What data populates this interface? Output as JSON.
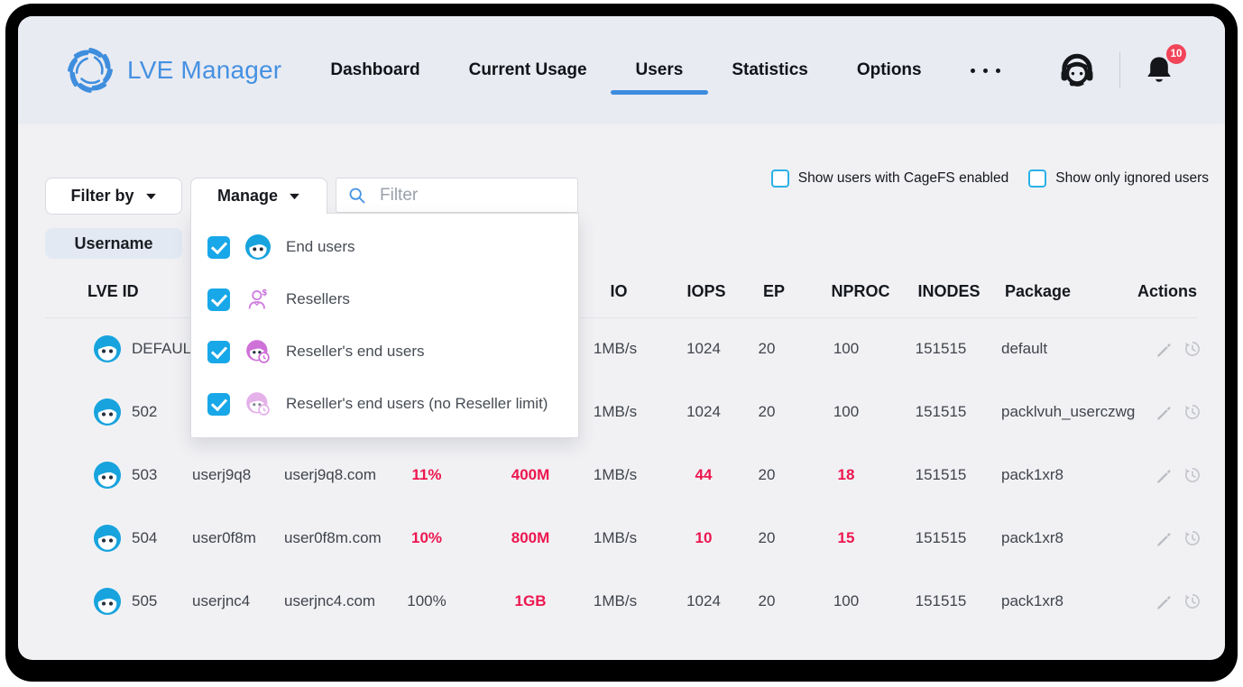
{
  "navbar": {
    "brand": "LVE Manager",
    "items": [
      {
        "label": "Dashboard",
        "active": false
      },
      {
        "label": "Current Usage",
        "active": false
      },
      {
        "label": "Users",
        "active": true
      },
      {
        "label": "Statistics",
        "active": false
      },
      {
        "label": "Options",
        "active": false
      }
    ],
    "notifications_count": "10"
  },
  "filters": {
    "filter_by_label": "Filter by",
    "manage_label": "Manage",
    "search_placeholder": "Filter",
    "search_value": "",
    "username_chip": "Username",
    "cagefs_checkbox": {
      "label": "Show users with CageFS enabled",
      "checked": false
    },
    "ignored_checkbox": {
      "label": "Show only ignored users",
      "checked": false
    }
  },
  "manage_dropdown": {
    "items": [
      {
        "label": "End users",
        "checked": true,
        "icon": "i-enduser"
      },
      {
        "label": "Resellers",
        "checked": true,
        "icon": "i-reseller"
      },
      {
        "label": "Reseller's end users",
        "checked": true,
        "icon": "i-rend"
      },
      {
        "label": "Reseller's end users (no Reseller limit)",
        "checked": true,
        "icon": "i-rendnl"
      }
    ]
  },
  "table": {
    "columns": [
      "LVE ID",
      "IO",
      "IOPS",
      "EP",
      "NPROC",
      "INODES",
      "Package",
      "Actions"
    ],
    "rows": [
      {
        "lve_id": "DEFAULT",
        "username": "",
        "domain": "",
        "cpu": "",
        "memory": "",
        "io": "1MB/s",
        "iops": "1024",
        "ep": "20",
        "nproc": "100",
        "inodes": "151515",
        "package": "default",
        "alerts": []
      },
      {
        "lve_id": "502",
        "username": "",
        "domain": "",
        "cpu": "",
        "memory": "",
        "io": "1MB/s",
        "iops": "1024",
        "ep": "20",
        "nproc": "100",
        "inodes": "151515",
        "package": "packlvuh_userczwg",
        "alerts": []
      },
      {
        "lve_id": "503",
        "username": "userj9q8",
        "domain": "userj9q8.com",
        "cpu": "11%",
        "memory": "400M",
        "io": "1MB/s",
        "iops": "44",
        "ep": "20",
        "nproc": "18",
        "inodes": "151515",
        "package": "pack1xr8",
        "alerts": [
          "cpu",
          "memory",
          "iops",
          "nproc"
        ]
      },
      {
        "lve_id": "504",
        "username": "user0f8m",
        "domain": "user0f8m.com",
        "cpu": "10%",
        "memory": "800M",
        "io": "1MB/s",
        "iops": "10",
        "ep": "20",
        "nproc": "15",
        "inodes": "151515",
        "package": "pack1xr8",
        "alerts": [
          "cpu",
          "memory",
          "iops",
          "nproc"
        ]
      },
      {
        "lve_id": "505",
        "username": "userjnc4",
        "domain": "userjnc4.com",
        "cpu": "100%",
        "memory": "1GB",
        "io": "1MB/s",
        "iops": "1024",
        "ep": "20",
        "nproc": "100",
        "inodes": "151515",
        "package": "pack1xr8",
        "alerts": [
          "memory"
        ]
      }
    ]
  },
  "colors": {
    "accent_blue": "#3d8ce0",
    "brand_blue": "#4591e2",
    "checkbox_blue": "#18a7e8",
    "cyan_border": "#2bb1e8",
    "alert_red": "#ed174f",
    "avatar_blue": "#17a3dd",
    "reseller_pink": "#d07fe0",
    "navbar_bg": "#e9ebf2",
    "content_bg": "#f1f1f4",
    "badge_red": "#f2455a"
  }
}
